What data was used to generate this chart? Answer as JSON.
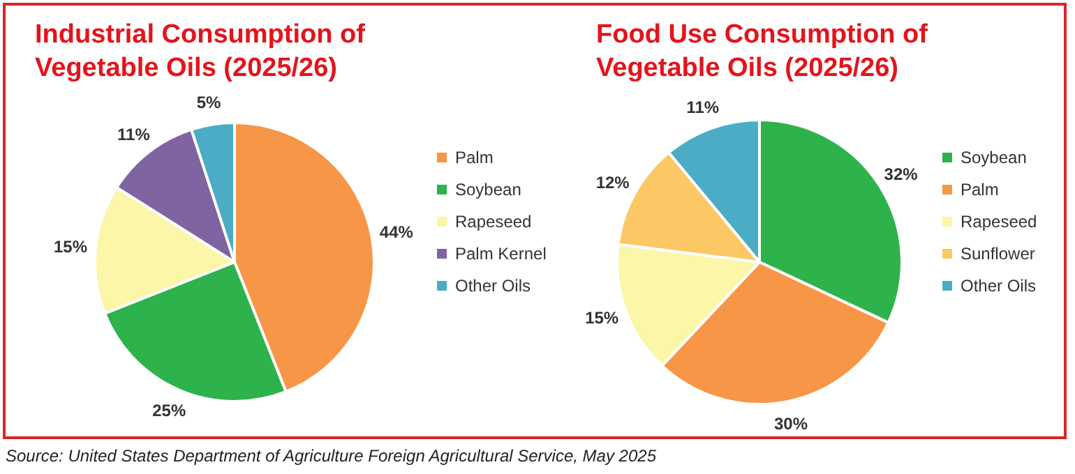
{
  "chart_data": [
    {
      "type": "pie",
      "title": "Industrial Consumption of Vegetable Oils (2025/26)",
      "categories": [
        "Palm",
        "Soybean",
        "Rapeseed",
        "Palm Kernel",
        "Other Oils"
      ],
      "values": [
        44,
        25,
        15,
        11,
        5
      ],
      "value_labels": [
        "44%",
        "25%",
        "15%",
        "11%",
        "5%"
      ],
      "colors": [
        "#f79646",
        "#2eb24b",
        "#fbf6a8",
        "#8064a2",
        "#4bacc6"
      ],
      "legend": "right",
      "annotations": [
        "Source: United States Department of Agriculture Foreign Agricultural Service, May 2025"
      ]
    },
    {
      "type": "pie",
      "title": "Food Use Consumption of Vegetable Oils (2025/26)",
      "categories": [
        "Soybean",
        "Palm",
        "Rapeseed",
        "Sunflower",
        "Other Oils"
      ],
      "values": [
        32,
        30,
        15,
        12,
        11
      ],
      "value_labels": [
        "32%",
        "30%",
        "15%",
        "12%",
        "11%"
      ],
      "colors": [
        "#2eb24b",
        "#f79646",
        "#fbf6a8",
        "#fcc865",
        "#4bacc6"
      ],
      "legend": "right"
    }
  ]
}
